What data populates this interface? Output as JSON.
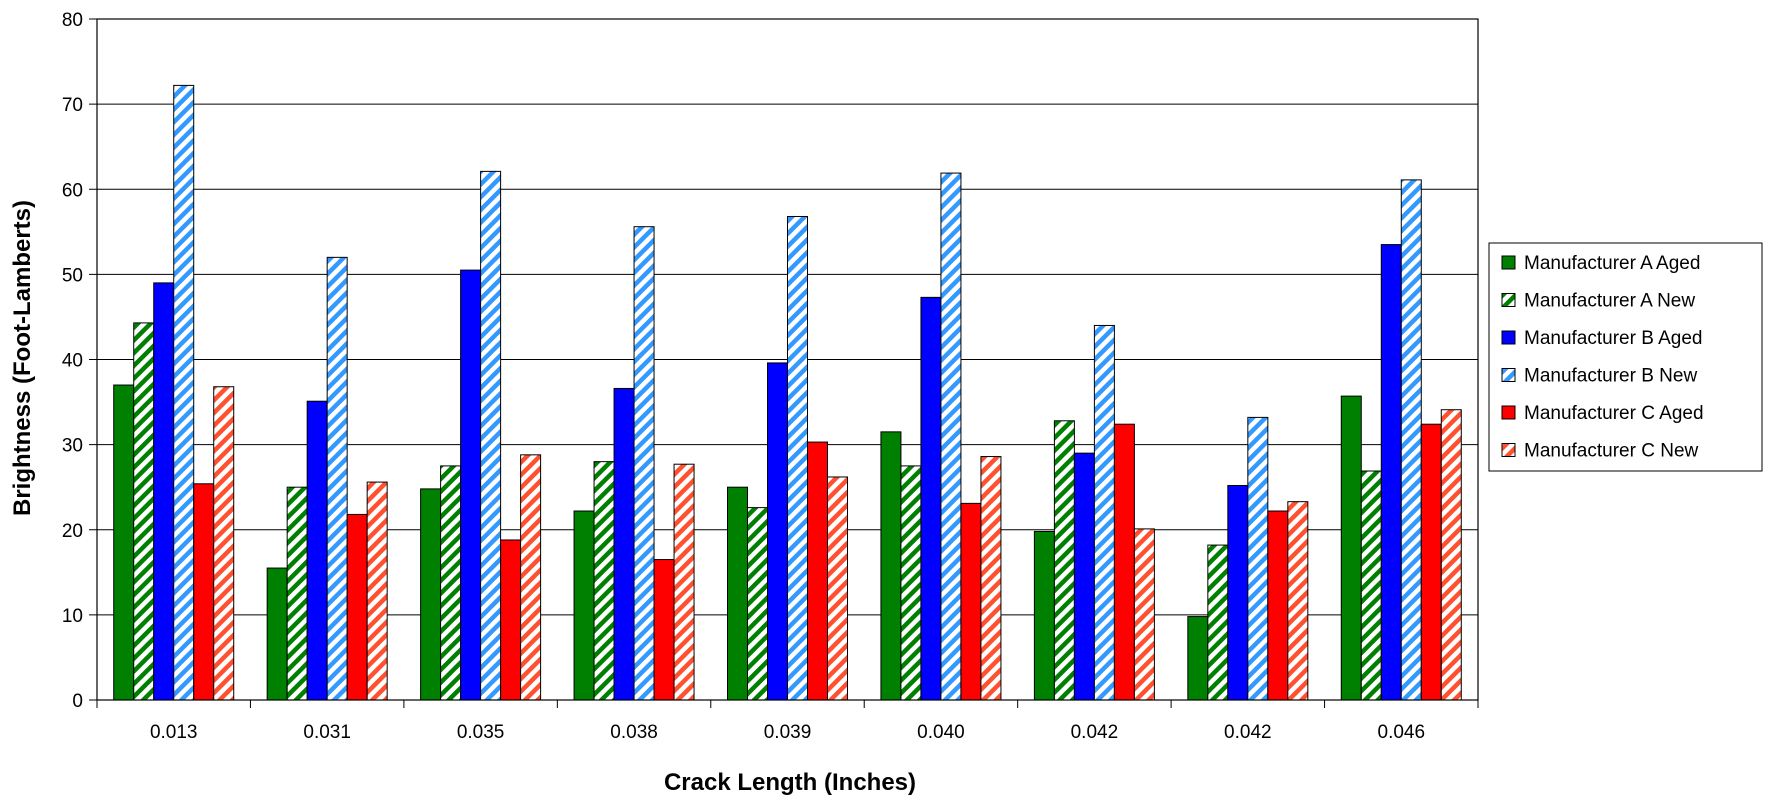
{
  "chart_data": {
    "type": "bar",
    "title": "",
    "xlabel": "Crack Length (Inches)",
    "ylabel": "Brightness (Foot-Lamberts)",
    "ylim": [
      0,
      80
    ],
    "yticks": [
      0,
      10,
      20,
      30,
      40,
      50,
      60,
      70,
      80
    ],
    "grid": "horizontal",
    "legend_position": "right",
    "categories": [
      "0.013",
      "0.031",
      "0.035",
      "0.038",
      "0.039",
      "0.040",
      "0.042",
      "0.042",
      "0.046"
    ],
    "series": [
      {
        "name": "Manufacturer A Aged",
        "color": "#008000",
        "pattern": "solid",
        "values": [
          37.0,
          15.5,
          24.8,
          22.2,
          25.0,
          31.5,
          19.8,
          9.8,
          35.7
        ]
      },
      {
        "name": "Manufacturer A New",
        "color": "#008000",
        "pattern": "hatched",
        "values": [
          44.3,
          25.0,
          27.5,
          28.0,
          22.6,
          27.5,
          32.8,
          18.2,
          26.9
        ]
      },
      {
        "name": "Manufacturer B Aged",
        "color": "#0000ff",
        "pattern": "solid",
        "values": [
          49.0,
          35.1,
          50.5,
          36.6,
          39.6,
          47.3,
          29.0,
          25.2,
          53.5
        ]
      },
      {
        "name": "Manufacturer B New",
        "color": "#3399ff",
        "pattern": "hatched",
        "values": [
          72.2,
          52.0,
          62.1,
          55.6,
          56.8,
          61.9,
          44.0,
          33.2,
          61.1
        ]
      },
      {
        "name": "Manufacturer C Aged",
        "color": "#ff0000",
        "pattern": "solid",
        "values": [
          25.4,
          21.8,
          18.8,
          16.5,
          30.3,
          23.1,
          32.4,
          22.2,
          32.4
        ]
      },
      {
        "name": "Manufacturer C New",
        "color": "#ff5030",
        "pattern": "hatched",
        "values": [
          36.8,
          25.6,
          28.8,
          27.7,
          26.2,
          28.6,
          20.1,
          23.3,
          34.1
        ]
      }
    ]
  }
}
